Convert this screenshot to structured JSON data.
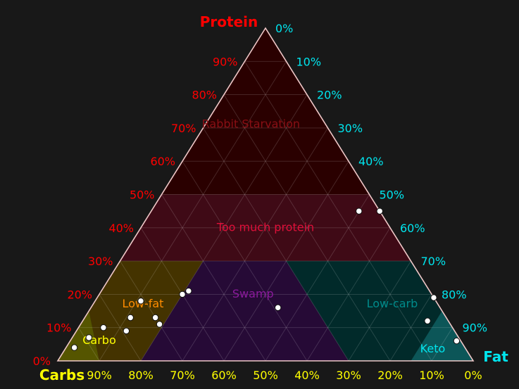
{
  "chart_data": {
    "type": "ternary",
    "axes": {
      "top": {
        "label": "Protein",
        "color": "#ff0000"
      },
      "left": {
        "label": "Carbs",
        "color": "#ffff00"
      },
      "right": {
        "label": "Fat",
        "color": "#00e5ee"
      }
    },
    "protein_ticks": [
      "0%",
      "10%",
      "20%",
      "30%",
      "40%",
      "50%",
      "60%",
      "70%",
      "80%",
      "90%"
    ],
    "fat_ticks": [
      "0%",
      "10%",
      "20%",
      "30%",
      "40%",
      "50%",
      "60%",
      "70%",
      "80%",
      "90%"
    ],
    "carb_ticks": [
      "90%",
      "80%",
      "70%",
      "60%",
      "50%",
      "40%",
      "30%",
      "20%",
      "10%",
      "0%"
    ],
    "regions": [
      {
        "id": "rabbit-starvation",
        "label": "Rabbit Starvation",
        "fill": "#2a0000",
        "text_color": "#8a0f14",
        "polygon": [
          [
            1,
            0,
            0
          ],
          [
            0.5,
            0,
            0.5
          ],
          [
            0.5,
            0.5,
            0
          ]
        ],
        "label_at": [
          0.71,
          0.18,
          0.11
        ]
      },
      {
        "id": "too-much-protein",
        "label": "Too much protein",
        "fill": "#3f0a16",
        "text_color": "#e0103a",
        "polygon": [
          [
            0.5,
            0,
            0.5
          ],
          [
            0.3,
            0,
            0.7
          ],
          [
            0.3,
            0.7,
            0
          ],
          [
            0.5,
            0.5,
            0
          ]
        ],
        "label_at": [
          0.4,
          0.3,
          0.3
        ]
      },
      {
        "id": "low-fat",
        "label": "Low-fat",
        "fill": "#443300",
        "text_color": "#ff8c00",
        "polygon": [
          [
            0.3,
            0.7,
            0
          ],
          [
            0.3,
            0.5,
            0.2
          ],
          [
            0,
            0.8,
            0.2
          ],
          [
            0,
            0.9,
            0.1
          ],
          [
            0.15,
            0.85,
            0
          ]
        ],
        "label_at": [
          0.17,
          0.71,
          0.12
        ]
      },
      {
        "id": "carbo",
        "label": "Carbo",
        "fill": "#555500",
        "text_color": "#ffff00",
        "polygon": [
          [
            0.15,
            0.85,
            0
          ],
          [
            0,
            0.9,
            0.1
          ],
          [
            0,
            1,
            0
          ]
        ],
        "label_at": [
          0.06,
          0.87,
          0.07
        ]
      },
      {
        "id": "swamp",
        "label": "Swamp",
        "fill": "#260a36",
        "text_color": "#8b1a9c",
        "polygon": [
          [
            0.3,
            0.5,
            0.2
          ],
          [
            0.3,
            0.3,
            0.4
          ],
          [
            0,
            0.3,
            0.7
          ],
          [
            0,
            0.8,
            0.2
          ]
        ],
        "label_at": [
          0.2,
          0.43,
          0.37
        ]
      },
      {
        "id": "low-carb",
        "label": "Low-carb",
        "fill": "#012a2a",
        "text_color": "#008b8b",
        "polygon": [
          [
            0.3,
            0.3,
            0.4
          ],
          [
            0.3,
            0,
            0.7
          ],
          [
            0.15,
            0,
            0.85
          ],
          [
            0,
            0.15,
            0.85
          ],
          [
            0,
            0.3,
            0.7
          ]
        ],
        "label_at": [
          0.17,
          0.11,
          0.72
        ]
      },
      {
        "id": "keto",
        "label": "Keto",
        "fill": "#0c5658",
        "text_color": "#00e5ee",
        "polygon": [
          [
            0.15,
            0,
            0.85
          ],
          [
            0,
            0,
            1
          ],
          [
            0,
            0.15,
            0.85
          ]
        ],
        "label_at": [
          0.035,
          0.08,
          0.885
        ]
      }
    ],
    "points": [
      {
        "protein": 0.45,
        "carbs": 0.05,
        "fat": 0.5
      },
      {
        "protein": 0.45,
        "carbs": 0.0,
        "fat": 0.55
      },
      {
        "protein": 0.2,
        "carbs": 0.6,
        "fat": 0.2
      },
      {
        "protein": 0.21,
        "carbs": 0.58,
        "fat": 0.21
      },
      {
        "protein": 0.18,
        "carbs": 0.71,
        "fat": 0.11
      },
      {
        "protein": 0.13,
        "carbs": 0.7,
        "fat": 0.17
      },
      {
        "protein": 0.13,
        "carbs": 0.76,
        "fat": 0.11
      },
      {
        "protein": 0.11,
        "carbs": 0.7,
        "fat": 0.19
      },
      {
        "protein": 0.1,
        "carbs": 0.84,
        "fat": 0.06
      },
      {
        "protein": 0.09,
        "carbs": 0.79,
        "fat": 0.12
      },
      {
        "protein": 0.07,
        "carbs": 0.89,
        "fat": 0.04
      },
      {
        "protein": 0.04,
        "carbs": 0.94,
        "fat": 0.02
      },
      {
        "protein": 0.16,
        "carbs": 0.39,
        "fat": 0.45
      },
      {
        "protein": 0.19,
        "carbs": 0.0,
        "fat": 0.81
      },
      {
        "protein": 0.12,
        "carbs": 0.05,
        "fat": 0.83
      },
      {
        "protein": 0.06,
        "carbs": 0.01,
        "fat": 0.93
      }
    ],
    "grid": true,
    "grid_step": 0.1
  }
}
